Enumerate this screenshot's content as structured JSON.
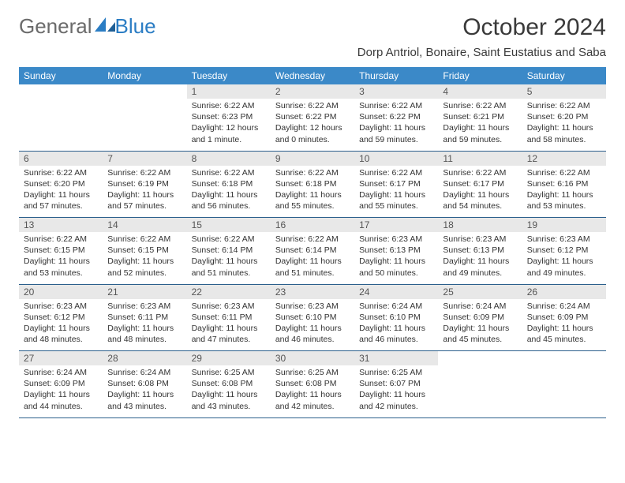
{
  "logo": {
    "word1": "General",
    "word2": "Blue"
  },
  "title": "October 2024",
  "location": "Dorp Antriol, Bonaire, Saint Eustatius and Saba",
  "colors": {
    "header_bg": "#3b89c8",
    "header_text": "#ffffff",
    "daynum_bg": "#e8e8e8",
    "row_border": "#2b5f8c",
    "logo_grey": "#6b6b6b",
    "logo_blue": "#2b7dc4"
  },
  "daysOfWeek": [
    "Sunday",
    "Monday",
    "Tuesday",
    "Wednesday",
    "Thursday",
    "Friday",
    "Saturday"
  ],
  "weeks": [
    [
      {
        "num": "",
        "lines": []
      },
      {
        "num": "",
        "lines": []
      },
      {
        "num": "1",
        "lines": [
          "Sunrise: 6:22 AM",
          "Sunset: 6:23 PM",
          "Daylight: 12 hours and 1 minute."
        ]
      },
      {
        "num": "2",
        "lines": [
          "Sunrise: 6:22 AM",
          "Sunset: 6:22 PM",
          "Daylight: 12 hours and 0 minutes."
        ]
      },
      {
        "num": "3",
        "lines": [
          "Sunrise: 6:22 AM",
          "Sunset: 6:22 PM",
          "Daylight: 11 hours and 59 minutes."
        ]
      },
      {
        "num": "4",
        "lines": [
          "Sunrise: 6:22 AM",
          "Sunset: 6:21 PM",
          "Daylight: 11 hours and 59 minutes."
        ]
      },
      {
        "num": "5",
        "lines": [
          "Sunrise: 6:22 AM",
          "Sunset: 6:20 PM",
          "Daylight: 11 hours and 58 minutes."
        ]
      }
    ],
    [
      {
        "num": "6",
        "lines": [
          "Sunrise: 6:22 AM",
          "Sunset: 6:20 PM",
          "Daylight: 11 hours and 57 minutes."
        ]
      },
      {
        "num": "7",
        "lines": [
          "Sunrise: 6:22 AM",
          "Sunset: 6:19 PM",
          "Daylight: 11 hours and 57 minutes."
        ]
      },
      {
        "num": "8",
        "lines": [
          "Sunrise: 6:22 AM",
          "Sunset: 6:18 PM",
          "Daylight: 11 hours and 56 minutes."
        ]
      },
      {
        "num": "9",
        "lines": [
          "Sunrise: 6:22 AM",
          "Sunset: 6:18 PM",
          "Daylight: 11 hours and 55 minutes."
        ]
      },
      {
        "num": "10",
        "lines": [
          "Sunrise: 6:22 AM",
          "Sunset: 6:17 PM",
          "Daylight: 11 hours and 55 minutes."
        ]
      },
      {
        "num": "11",
        "lines": [
          "Sunrise: 6:22 AM",
          "Sunset: 6:17 PM",
          "Daylight: 11 hours and 54 minutes."
        ]
      },
      {
        "num": "12",
        "lines": [
          "Sunrise: 6:22 AM",
          "Sunset: 6:16 PM",
          "Daylight: 11 hours and 53 minutes."
        ]
      }
    ],
    [
      {
        "num": "13",
        "lines": [
          "Sunrise: 6:22 AM",
          "Sunset: 6:15 PM",
          "Daylight: 11 hours and 53 minutes."
        ]
      },
      {
        "num": "14",
        "lines": [
          "Sunrise: 6:22 AM",
          "Sunset: 6:15 PM",
          "Daylight: 11 hours and 52 minutes."
        ]
      },
      {
        "num": "15",
        "lines": [
          "Sunrise: 6:22 AM",
          "Sunset: 6:14 PM",
          "Daylight: 11 hours and 51 minutes."
        ]
      },
      {
        "num": "16",
        "lines": [
          "Sunrise: 6:22 AM",
          "Sunset: 6:14 PM",
          "Daylight: 11 hours and 51 minutes."
        ]
      },
      {
        "num": "17",
        "lines": [
          "Sunrise: 6:23 AM",
          "Sunset: 6:13 PM",
          "Daylight: 11 hours and 50 minutes."
        ]
      },
      {
        "num": "18",
        "lines": [
          "Sunrise: 6:23 AM",
          "Sunset: 6:13 PM",
          "Daylight: 11 hours and 49 minutes."
        ]
      },
      {
        "num": "19",
        "lines": [
          "Sunrise: 6:23 AM",
          "Sunset: 6:12 PM",
          "Daylight: 11 hours and 49 minutes."
        ]
      }
    ],
    [
      {
        "num": "20",
        "lines": [
          "Sunrise: 6:23 AM",
          "Sunset: 6:12 PM",
          "Daylight: 11 hours and 48 minutes."
        ]
      },
      {
        "num": "21",
        "lines": [
          "Sunrise: 6:23 AM",
          "Sunset: 6:11 PM",
          "Daylight: 11 hours and 48 minutes."
        ]
      },
      {
        "num": "22",
        "lines": [
          "Sunrise: 6:23 AM",
          "Sunset: 6:11 PM",
          "Daylight: 11 hours and 47 minutes."
        ]
      },
      {
        "num": "23",
        "lines": [
          "Sunrise: 6:23 AM",
          "Sunset: 6:10 PM",
          "Daylight: 11 hours and 46 minutes."
        ]
      },
      {
        "num": "24",
        "lines": [
          "Sunrise: 6:24 AM",
          "Sunset: 6:10 PM",
          "Daylight: 11 hours and 46 minutes."
        ]
      },
      {
        "num": "25",
        "lines": [
          "Sunrise: 6:24 AM",
          "Sunset: 6:09 PM",
          "Daylight: 11 hours and 45 minutes."
        ]
      },
      {
        "num": "26",
        "lines": [
          "Sunrise: 6:24 AM",
          "Sunset: 6:09 PM",
          "Daylight: 11 hours and 45 minutes."
        ]
      }
    ],
    [
      {
        "num": "27",
        "lines": [
          "Sunrise: 6:24 AM",
          "Sunset: 6:09 PM",
          "Daylight: 11 hours and 44 minutes."
        ]
      },
      {
        "num": "28",
        "lines": [
          "Sunrise: 6:24 AM",
          "Sunset: 6:08 PM",
          "Daylight: 11 hours and 43 minutes."
        ]
      },
      {
        "num": "29",
        "lines": [
          "Sunrise: 6:25 AM",
          "Sunset: 6:08 PM",
          "Daylight: 11 hours and 43 minutes."
        ]
      },
      {
        "num": "30",
        "lines": [
          "Sunrise: 6:25 AM",
          "Sunset: 6:08 PM",
          "Daylight: 11 hours and 42 minutes."
        ]
      },
      {
        "num": "31",
        "lines": [
          "Sunrise: 6:25 AM",
          "Sunset: 6:07 PM",
          "Daylight: 11 hours and 42 minutes."
        ]
      },
      {
        "num": "",
        "lines": []
      },
      {
        "num": "",
        "lines": []
      }
    ]
  ]
}
